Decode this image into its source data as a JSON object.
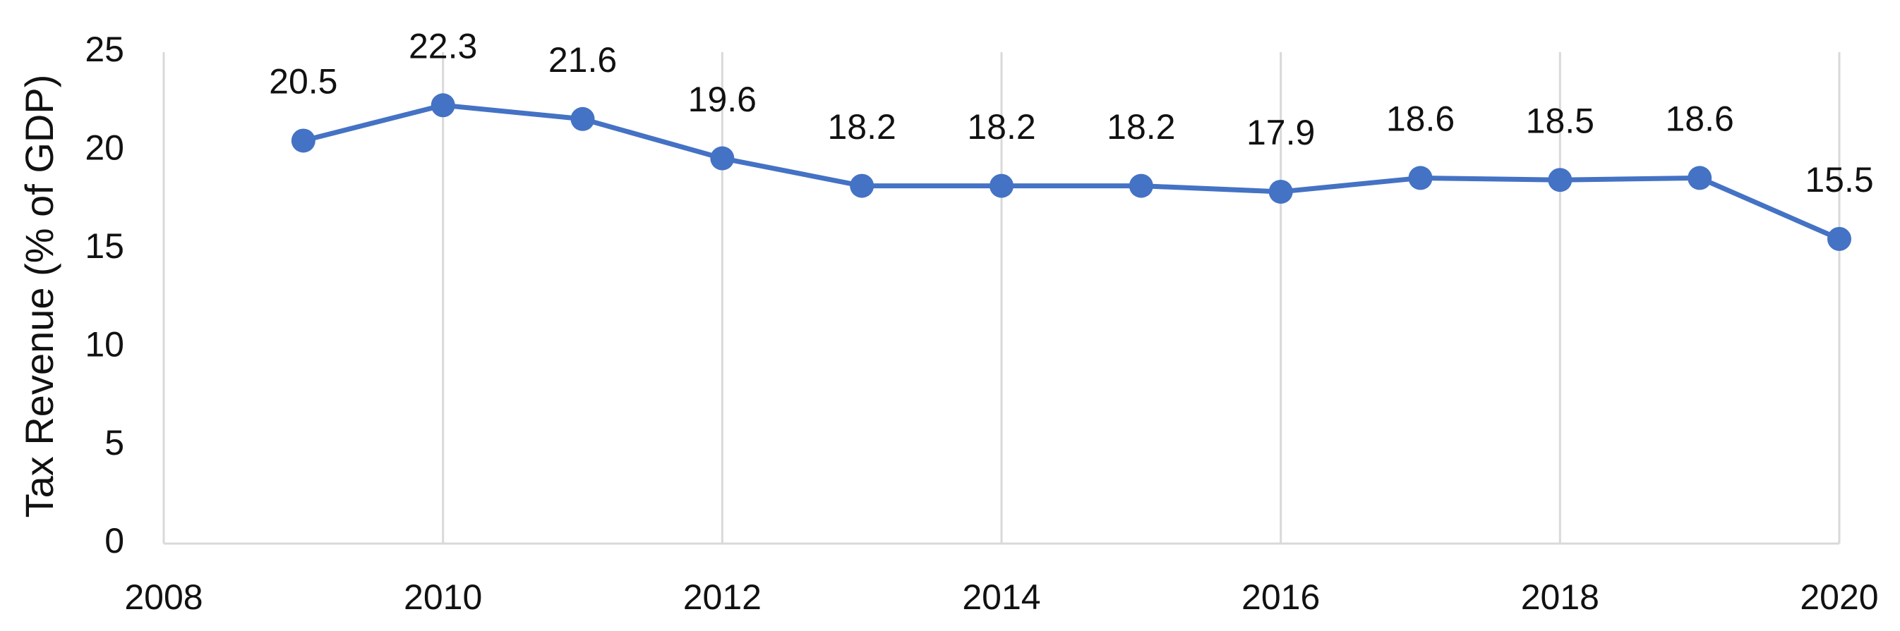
{
  "chart_data": {
    "type": "line",
    "y_label": "Tax Revenue (% of GDP)",
    "x": [
      2009,
      2010,
      2011,
      2012,
      2013,
      2014,
      2015,
      2016,
      2017,
      2018,
      2019,
      2020
    ],
    "series": [
      {
        "name": "Tax Revenue",
        "color": "#4472c4",
        "values": [
          20.5,
          22.3,
          21.6,
          19.6,
          18.2,
          18.2,
          18.2,
          17.9,
          18.6,
          18.5,
          18.6,
          15.5
        ]
      }
    ],
    "xlim": [
      2008,
      2020
    ],
    "xticks": [
      2008,
      2010,
      2012,
      2014,
      2016,
      2018,
      2020
    ],
    "ylim": [
      0,
      25
    ],
    "yticks": [
      0,
      5,
      10,
      15,
      20,
      25
    ],
    "grid": "x",
    "data_labels": true,
    "legend": false
  }
}
